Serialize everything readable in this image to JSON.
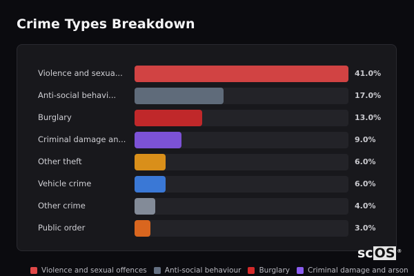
{
  "header": {
    "title": "Crime Types Breakdown"
  },
  "chart_data": {
    "type": "bar",
    "orientation": "horizontal",
    "title": "Crime Types Breakdown",
    "categories": [
      "Violence and sexual offences",
      "Anti-social behaviour",
      "Burglary",
      "Criminal damage and arson",
      "Other theft",
      "Vehicle crime",
      "Other crime",
      "Public order"
    ],
    "display_labels": [
      "Violence and sexua...",
      "Anti-social behavi...",
      "Burglary",
      "Criminal damage an...",
      "Other theft",
      "Vehicle crime",
      "Other crime",
      "Public order"
    ],
    "values": [
      41.0,
      17.0,
      13.0,
      9.0,
      6.0,
      6.0,
      4.0,
      3.0
    ],
    "value_labels": [
      "41.0%",
      "17.0%",
      "13.0%",
      "9.0%",
      "6.0%",
      "6.0%",
      "4.0%",
      "3.0%"
    ],
    "colors": [
      "#d14343",
      "#5f6b7a",
      "#c0282a",
      "#7c52d6",
      "#d98f1a",
      "#3a78d6",
      "#838b98",
      "#d9661f"
    ],
    "xlabel": "",
    "ylabel": "",
    "scale_max": 41.0,
    "unit": "%",
    "grid": false,
    "legend_position": "bottom"
  },
  "legend": {
    "items": [
      {
        "label": "Violence and sexual offences",
        "color": "#e04848"
      },
      {
        "label": "Anti-social behaviour",
        "color": "#647082"
      },
      {
        "label": "Burglary",
        "color": "#d42a2a"
      },
      {
        "label": "Criminal damage and arson",
        "color": "#8a5cf0"
      }
    ]
  },
  "watermark": {
    "sc": "sc",
    "os": "OS",
    "reg": "®"
  }
}
